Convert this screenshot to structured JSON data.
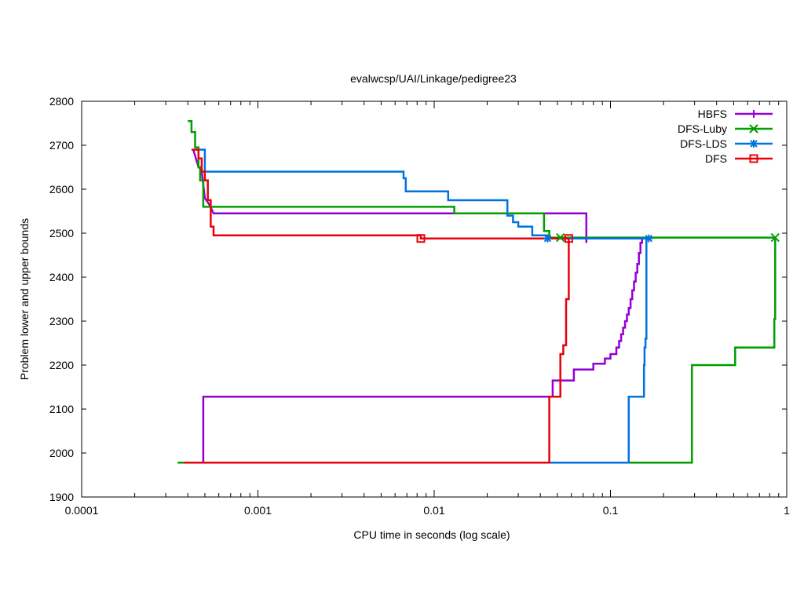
{
  "chart_data": {
    "type": "line",
    "title": "evalwcsp/UAI/Linkage/pedigree23",
    "xlabel": "CPU time in seconds (log scale)",
    "ylabel": "Problem lower and upper bounds",
    "xscale": "log",
    "xlim": [
      0.0001,
      1
    ],
    "ylim": [
      1900,
      2800
    ],
    "xticks": [
      {
        "v": 0.0001,
        "label": "0.0001"
      },
      {
        "v": 0.001,
        "label": "0.001"
      },
      {
        "v": 0.01,
        "label": "0.01"
      },
      {
        "v": 0.1,
        "label": "0.1"
      },
      {
        "v": 1,
        "label": "1"
      }
    ],
    "yticks": [
      {
        "v": 1900,
        "label": "1900"
      },
      {
        "v": 2000,
        "label": "2000"
      },
      {
        "v": 2100,
        "label": "2100"
      },
      {
        "v": 2200,
        "label": "2200"
      },
      {
        "v": 2300,
        "label": "2300"
      },
      {
        "v": 2400,
        "label": "2400"
      },
      {
        "v": 2500,
        "label": "2500"
      },
      {
        "v": 2600,
        "label": "2600"
      },
      {
        "v": 2700,
        "label": "2700"
      },
      {
        "v": 2800,
        "label": "2800"
      }
    ],
    "grid": false,
    "legend_position": "top-right",
    "series": [
      {
        "name": "HBFS",
        "color": "#9400d3",
        "marker": "plus",
        "upper": [
          [
            0.00043,
            2690
          ],
          [
            0.00046,
            2650
          ],
          [
            0.00048,
            2645
          ],
          [
            0.00048,
            2640
          ],
          [
            0.0005,
            2580
          ],
          [
            0.00053,
            2565
          ],
          [
            0.00056,
            2545
          ],
          [
            0.013,
            2545
          ],
          [
            0.073,
            2545
          ],
          [
            0.073,
            2478
          ]
        ],
        "lower": [
          [
            0.00049,
            1978
          ],
          [
            0.00049,
            2128
          ],
          [
            0.047,
            2128
          ],
          [
            0.047,
            2165
          ],
          [
            0.062,
            2165
          ],
          [
            0.062,
            2190
          ],
          [
            0.08,
            2190
          ],
          [
            0.08,
            2203
          ],
          [
            0.093,
            2203
          ],
          [
            0.093,
            2215
          ],
          [
            0.1,
            2215
          ],
          [
            0.1,
            2225
          ],
          [
            0.108,
            2225
          ],
          [
            0.108,
            2240
          ],
          [
            0.112,
            2240
          ],
          [
            0.112,
            2255
          ],
          [
            0.115,
            2255
          ],
          [
            0.115,
            2270
          ],
          [
            0.118,
            2270
          ],
          [
            0.118,
            2285
          ],
          [
            0.121,
            2285
          ],
          [
            0.121,
            2300
          ],
          [
            0.124,
            2300
          ],
          [
            0.124,
            2315
          ],
          [
            0.127,
            2315
          ],
          [
            0.127,
            2330
          ],
          [
            0.13,
            2330
          ],
          [
            0.13,
            2350
          ],
          [
            0.133,
            2350
          ],
          [
            0.133,
            2370
          ],
          [
            0.136,
            2370
          ],
          [
            0.136,
            2390
          ],
          [
            0.139,
            2390
          ],
          [
            0.139,
            2410
          ],
          [
            0.142,
            2410
          ],
          [
            0.142,
            2430
          ],
          [
            0.145,
            2430
          ],
          [
            0.145,
            2455
          ],
          [
            0.148,
            2455
          ],
          [
            0.148,
            2478
          ],
          [
            0.151,
            2478
          ],
          [
            0.151,
            2488
          ]
        ],
        "marker_points": []
      },
      {
        "name": "DFS-Luby",
        "color": "#009e00",
        "marker": "cross",
        "upper": [
          [
            0.0004,
            2755
          ],
          [
            0.00042,
            2755
          ],
          [
            0.00042,
            2730
          ],
          [
            0.00044,
            2730
          ],
          [
            0.00044,
            2695
          ],
          [
            0.00046,
            2695
          ],
          [
            0.00046,
            2650
          ],
          [
            0.00047,
            2650
          ],
          [
            0.00047,
            2620
          ],
          [
            0.00049,
            2620
          ],
          [
            0.00049,
            2560
          ],
          [
            0.013,
            2560
          ],
          [
            0.013,
            2545
          ],
          [
            0.042,
            2545
          ],
          [
            0.042,
            2505
          ],
          [
            0.045,
            2505
          ],
          [
            0.045,
            2490
          ],
          [
            0.85,
            2490
          ]
        ],
        "lower": [
          [
            0.00035,
            1978
          ],
          [
            0.29,
            1978
          ],
          [
            0.29,
            2200
          ],
          [
            0.51,
            2200
          ],
          [
            0.51,
            2240
          ],
          [
            0.85,
            2240
          ],
          [
            0.85,
            2305
          ],
          [
            0.86,
            2305
          ],
          [
            0.86,
            2490
          ]
        ],
        "marker_points": [
          [
            0.052,
            2490
          ],
          [
            0.86,
            2490
          ]
        ]
      },
      {
        "name": "DFS-LDS",
        "color": "#0072e0",
        "marker": "star",
        "upper": [
          [
            0.00045,
            2690
          ],
          [
            0.0005,
            2690
          ],
          [
            0.0005,
            2640
          ],
          [
            0.0067,
            2640
          ],
          [
            0.0067,
            2625
          ],
          [
            0.0069,
            2625
          ],
          [
            0.0069,
            2595
          ],
          [
            0.012,
            2595
          ],
          [
            0.012,
            2575
          ],
          [
            0.026,
            2575
          ],
          [
            0.026,
            2540
          ],
          [
            0.028,
            2540
          ],
          [
            0.028,
            2525
          ],
          [
            0.03,
            2525
          ],
          [
            0.03,
            2515
          ],
          [
            0.036,
            2515
          ],
          [
            0.036,
            2495
          ],
          [
            0.044,
            2495
          ],
          [
            0.044,
            2488
          ],
          [
            0.167,
            2488
          ]
        ],
        "lower": [
          [
            0.045,
            1978
          ],
          [
            0.127,
            1978
          ],
          [
            0.127,
            2128
          ],
          [
            0.155,
            2128
          ],
          [
            0.155,
            2200
          ],
          [
            0.156,
            2200
          ],
          [
            0.156,
            2240
          ],
          [
            0.158,
            2240
          ],
          [
            0.158,
            2260
          ],
          [
            0.16,
            2260
          ],
          [
            0.16,
            2488
          ]
        ],
        "marker_points": [
          [
            0.044,
            2488
          ],
          [
            0.165,
            2488
          ]
        ]
      },
      {
        "name": "DFS",
        "color": "#e8000b",
        "marker": "square",
        "upper": [
          [
            0.00042,
            2690
          ],
          [
            0.00046,
            2690
          ],
          [
            0.00046,
            2670
          ],
          [
            0.00048,
            2670
          ],
          [
            0.00048,
            2640
          ],
          [
            0.0005,
            2640
          ],
          [
            0.0005,
            2620
          ],
          [
            0.00052,
            2620
          ],
          [
            0.00052,
            2575
          ],
          [
            0.00054,
            2575
          ],
          [
            0.00054,
            2515
          ],
          [
            0.00056,
            2515
          ],
          [
            0.00056,
            2495
          ],
          [
            0.0084,
            2495
          ],
          [
            0.0084,
            2488
          ],
          [
            0.058,
            2488
          ]
        ],
        "lower": [
          [
            0.00038,
            1978
          ],
          [
            0.045,
            1978
          ],
          [
            0.045,
            2128
          ],
          [
            0.052,
            2128
          ],
          [
            0.052,
            2225
          ],
          [
            0.054,
            2225
          ],
          [
            0.054,
            2245
          ],
          [
            0.056,
            2245
          ],
          [
            0.056,
            2350
          ],
          [
            0.058,
            2350
          ],
          [
            0.058,
            2488
          ]
        ],
        "marker_points": [
          [
            0.0084,
            2488
          ],
          [
            0.058,
            2488
          ]
        ]
      }
    ]
  }
}
